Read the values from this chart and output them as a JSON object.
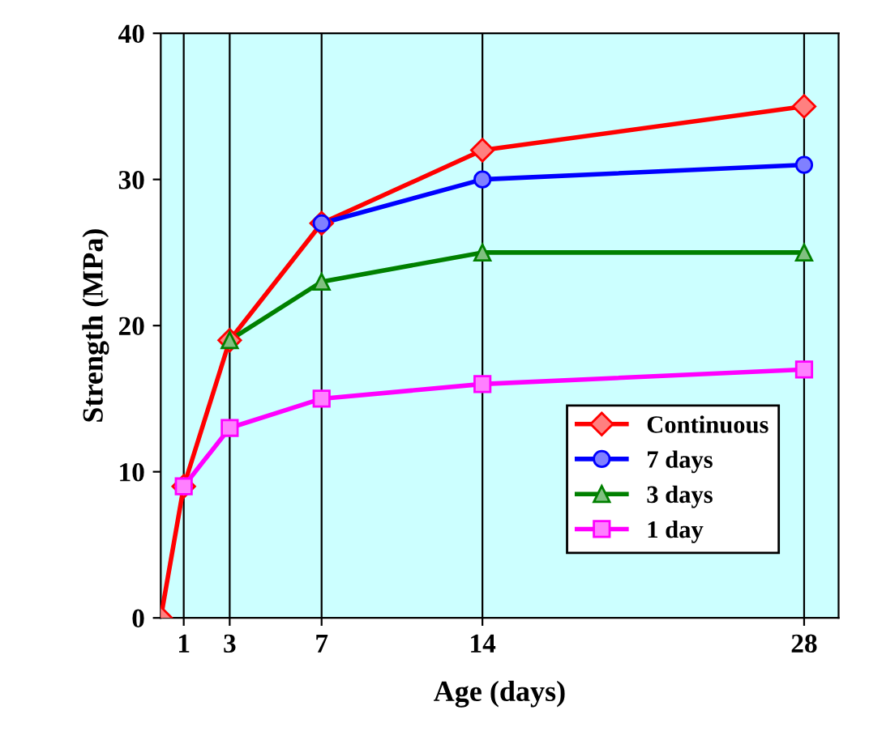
{
  "chart_data": {
    "type": "line",
    "xlabel": "Age (days)",
    "ylabel": "Strength (MPa)",
    "xlim": [
      0,
      29.5
    ],
    "xticks": [
      1,
      3,
      7,
      14,
      28
    ],
    "ylim": [
      0,
      40
    ],
    "yticks": [
      0,
      10,
      20,
      30,
      40
    ],
    "grid": "x",
    "legend": "bottom right",
    "series": [
      {
        "name": "Continuous",
        "color": "#ff0000",
        "marker": "diamond",
        "x": [
          0,
          1,
          3,
          7,
          14,
          28
        ],
        "values": [
          0,
          9,
          19,
          27,
          32,
          35
        ]
      },
      {
        "name": "7 days",
        "color": "#0000ff",
        "marker": "circle",
        "x": [
          7,
          14,
          28
        ],
        "values": [
          27,
          30,
          31
        ]
      },
      {
        "name": "3 days",
        "color": "#008000",
        "marker": "triangle",
        "x": [
          3,
          7,
          14,
          28
        ],
        "values": [
          19,
          23,
          25,
          25
        ]
      },
      {
        "name": "1 day",
        "color": "#ff00ff",
        "marker": "square",
        "x": [
          1,
          3,
          7,
          14,
          28
        ],
        "values": [
          9,
          13,
          15,
          16,
          17
        ]
      }
    ]
  }
}
